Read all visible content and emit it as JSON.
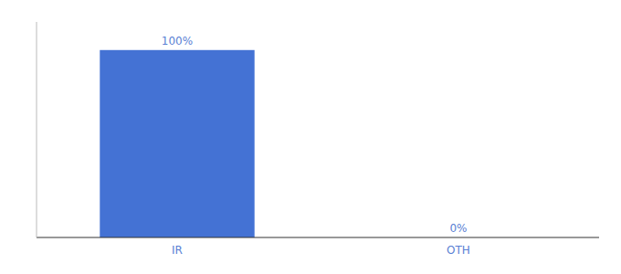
{
  "chart_data": {
    "type": "bar",
    "categories": [
      "IR",
      "OTH"
    ],
    "values": [
      100,
      0
    ],
    "value_labels": [
      "100%",
      "0%"
    ],
    "color": "#4472d4",
    "ylim": [
      0,
      115
    ],
    "yticks": [],
    "grid": false,
    "data_labels": true,
    "tick_labels": "x"
  }
}
